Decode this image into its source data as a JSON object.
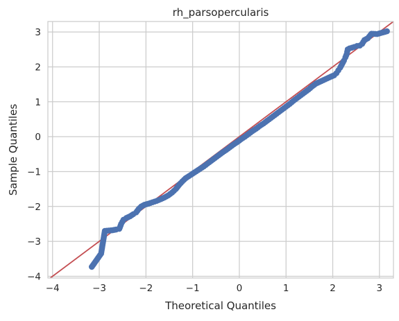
{
  "chart_data": {
    "type": "scatter",
    "title": "rh_parsopercularis",
    "xlabel": "Theoretical Quantiles",
    "ylabel": "Sample Quantiles",
    "xlim": [
      -4.1,
      3.3
    ],
    "ylim": [
      -4.05,
      3.3
    ],
    "xticks": [
      -4,
      -3,
      -2,
      -1,
      0,
      1,
      2,
      3
    ],
    "yticks": [
      -4,
      -3,
      -2,
      -1,
      0,
      1,
      2,
      3
    ],
    "xtick_labels": [
      "−4",
      "−3",
      "−2",
      "−1",
      "0",
      "1",
      "2",
      "3"
    ],
    "ytick_labels": [
      "−4",
      "−3",
      "−2",
      "−1",
      "0",
      "1",
      "2",
      "3"
    ],
    "grid": true,
    "reference_line": {
      "slope": 1,
      "intercept": 0,
      "color": "#c44e52"
    },
    "point_color": "#4c72b0",
    "series": [
      {
        "name": "sample quantiles",
        "points": [
          [
            -3.16,
            -3.73
          ],
          [
            -2.96,
            -3.35
          ],
          [
            -2.88,
            -2.7
          ],
          [
            -2.8,
            -2.69
          ],
          [
            -2.72,
            -2.68
          ],
          [
            -2.64,
            -2.66
          ],
          [
            -2.57,
            -2.64
          ],
          [
            -2.53,
            -2.5
          ],
          [
            -2.48,
            -2.38
          ],
          [
            -2.42,
            -2.33
          ],
          [
            -2.34,
            -2.28
          ],
          [
            -2.27,
            -2.22
          ],
          [
            -2.21,
            -2.17
          ],
          [
            -2.16,
            -2.08
          ],
          [
            -2.1,
            -2.0
          ],
          [
            -2.03,
            -1.95
          ],
          [
            -1.95,
            -1.92
          ],
          [
            -1.86,
            -1.88
          ],
          [
            -1.77,
            -1.84
          ],
          [
            -1.68,
            -1.79
          ],
          [
            -1.6,
            -1.74
          ],
          [
            -1.52,
            -1.68
          ],
          [
            -1.44,
            -1.6
          ],
          [
            -1.36,
            -1.5
          ],
          [
            -1.29,
            -1.38
          ],
          [
            -1.22,
            -1.28
          ],
          [
            -1.15,
            -1.19
          ],
          [
            -1.08,
            -1.13
          ],
          [
            -1.0,
            -1.06
          ],
          [
            -0.92,
            -0.99
          ],
          [
            -0.84,
            -0.92
          ],
          [
            -0.76,
            -0.85
          ],
          [
            -0.68,
            -0.77
          ],
          [
            -0.6,
            -0.69
          ],
          [
            -0.52,
            -0.61
          ],
          [
            -0.44,
            -0.53
          ],
          [
            -0.36,
            -0.45
          ],
          [
            -0.28,
            -0.38
          ],
          [
            -0.2,
            -0.3
          ],
          [
            -0.12,
            -0.22
          ],
          [
            -0.04,
            -0.15
          ],
          [
            0.04,
            -0.07
          ],
          [
            0.12,
            0.0
          ],
          [
            0.2,
            0.08
          ],
          [
            0.28,
            0.16
          ],
          [
            0.36,
            0.23
          ],
          [
            0.44,
            0.31
          ],
          [
            0.52,
            0.38
          ],
          [
            0.6,
            0.46
          ],
          [
            0.68,
            0.54
          ],
          [
            0.76,
            0.62
          ],
          [
            0.84,
            0.7
          ],
          [
            0.92,
            0.78
          ],
          [
            1.0,
            0.86
          ],
          [
            1.08,
            0.94
          ],
          [
            1.16,
            1.03
          ],
          [
            1.24,
            1.11
          ],
          [
            1.32,
            1.19
          ],
          [
            1.4,
            1.27
          ],
          [
            1.48,
            1.35
          ],
          [
            1.56,
            1.44
          ],
          [
            1.64,
            1.52
          ],
          [
            1.72,
            1.57
          ],
          [
            1.8,
            1.62
          ],
          [
            1.88,
            1.67
          ],
          [
            1.96,
            1.72
          ],
          [
            2.03,
            1.76
          ],
          [
            2.08,
            1.82
          ],
          [
            2.12,
            1.9
          ],
          [
            2.16,
            1.98
          ],
          [
            2.2,
            2.08
          ],
          [
            2.24,
            2.18
          ],
          [
            2.27,
            2.27
          ],
          [
            2.3,
            2.37
          ],
          [
            2.32,
            2.5
          ],
          [
            2.36,
            2.53
          ],
          [
            2.41,
            2.55
          ],
          [
            2.46,
            2.57
          ],
          [
            2.52,
            2.6
          ],
          [
            2.58,
            2.61
          ],
          [
            2.63,
            2.66
          ],
          [
            2.68,
            2.77
          ],
          [
            2.75,
            2.82
          ],
          [
            2.83,
            2.95
          ],
          [
            2.95,
            2.94
          ],
          [
            3.16,
            3.02
          ]
        ]
      }
    ]
  }
}
